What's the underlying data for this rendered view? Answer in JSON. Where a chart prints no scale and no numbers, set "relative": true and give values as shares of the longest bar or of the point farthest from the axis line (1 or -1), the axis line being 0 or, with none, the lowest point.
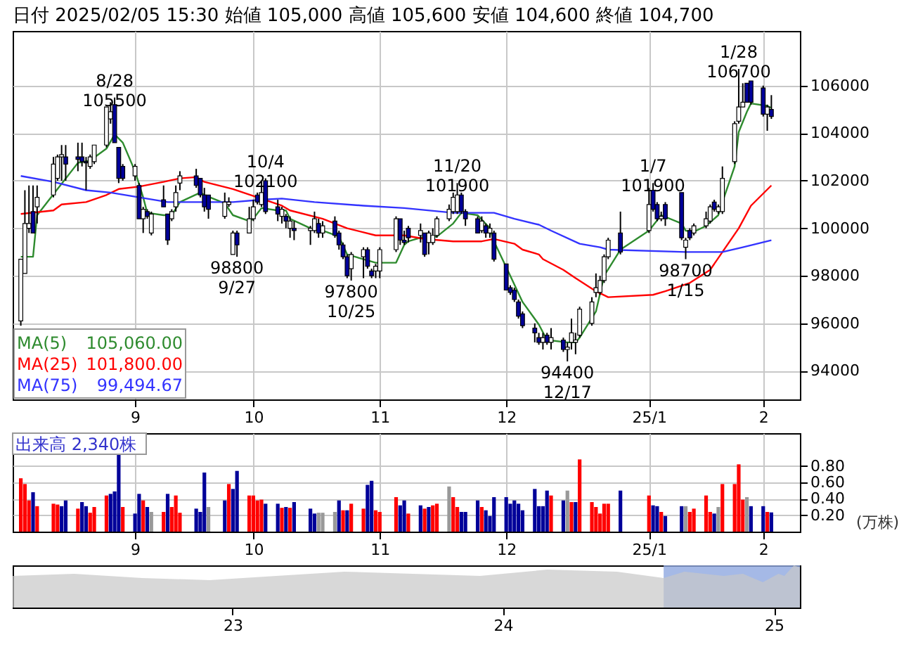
{
  "chart_data": [
    {
      "type": "candlestick",
      "title": "日付 2025/02/05 15:30 始値 105,000 高値 105,600 安値 104,600 終値 104,700",
      "x": [
        "2024-08-05",
        "2024-08-06",
        "2024-08-07",
        "2024-08-08",
        "2024-08-09",
        "2024-08-13",
        "2024-08-14",
        "2024-08-15",
        "2024-08-16",
        "2024-08-19",
        "2024-08-20",
        "2024-08-21",
        "2024-08-22",
        "2024-08-23",
        "2024-08-26",
        "2024-08-27",
        "2024-08-28",
        "2024-08-29",
        "2024-08-30",
        "2024-09-02",
        "2024-09-03",
        "2024-09-04",
        "2024-09-05",
        "2024-09-06",
        "2024-09-09",
        "2024-09-10",
        "2024-09-11",
        "2024-09-12",
        "2024-09-13",
        "2024-09-17",
        "2024-09-18",
        "2024-09-19",
        "2024-09-20",
        "2024-09-24",
        "2024-09-25",
        "2024-09-26",
        "2024-09-27",
        "2024-09-30",
        "2024-10-01",
        "2024-10-02",
        "2024-10-03",
        "2024-10-04",
        "2024-10-07",
        "2024-10-08",
        "2024-10-09",
        "2024-10-10",
        "2024-10-11",
        "2024-10-15",
        "2024-10-16",
        "2024-10-17",
        "2024-10-18",
        "2024-10-21",
        "2024-10-22",
        "2024-10-23",
        "2024-10-24",
        "2024-10-25",
        "2024-10-28",
        "2024-10-29",
        "2024-10-30",
        "2024-10-31",
        "2024-11-01",
        "2024-11-05",
        "2024-11-06",
        "2024-11-07",
        "2024-11-08",
        "2024-11-11",
        "2024-11-12",
        "2024-11-13",
        "2024-11-14",
        "2024-11-15",
        "2024-11-18",
        "2024-11-19",
        "2024-11-20",
        "2024-11-21",
        "2024-11-22",
        "2024-11-25",
        "2024-11-26",
        "2024-11-27",
        "2024-11-28",
        "2024-11-29",
        "2024-12-02",
        "2024-12-03",
        "2024-12-04",
        "2024-12-05",
        "2024-12-06",
        "2024-12-09",
        "2024-12-10",
        "2024-12-11",
        "2024-12-12",
        "2024-12-13",
        "2024-12-16",
        "2024-12-17",
        "2024-12-18",
        "2024-12-19",
        "2024-12-20",
        "2024-12-23",
        "2024-12-24",
        "2024-12-25",
        "2024-12-26",
        "2024-12-27",
        "2024-12-30",
        "2025-01-06",
        "2025-01-07",
        "2025-01-08",
        "2025-01-09",
        "2025-01-10",
        "2025-01-14",
        "2025-01-15",
        "2025-01-16",
        "2025-01-17",
        "2025-01-20",
        "2025-01-21",
        "2025-01-22",
        "2025-01-23",
        "2025-01-24",
        "2025-01-27",
        "2025-01-28",
        "2025-01-29",
        "2025-01-30",
        "2025-01-31",
        "2025-02-03",
        "2025-02-04",
        "2025-02-05"
      ],
      "ohlc": [
        [
          96100,
          98700,
          95900,
          98700
        ],
        [
          98100,
          101600,
          98100,
          100200
        ],
        [
          100000,
          101800,
          99800,
          100200
        ],
        [
          100700,
          101800,
          99800,
          99800
        ],
        [
          100900,
          101800,
          100200,
          101300
        ],
        [
          101400,
          103000,
          101300,
          102700
        ],
        [
          102100,
          103100,
          102000,
          103000
        ],
        [
          103000,
          103500,
          102000,
          103100
        ],
        [
          103000,
          103500,
          102000,
          102700
        ],
        [
          103000,
          103600,
          102400,
          102900
        ],
        [
          103000,
          103600,
          102600,
          102800
        ],
        [
          102800,
          103000,
          101600,
          102750
        ],
        [
          102600,
          103100,
          102500,
          103000
        ],
        [
          102800,
          103500,
          102700,
          103500
        ],
        [
          103500,
          105100,
          103400,
          105100
        ],
        [
          104600,
          105300,
          104400,
          104900
        ],
        [
          105200,
          105500,
          103600,
          103600
        ],
        [
          103400,
          103400,
          101900,
          102100
        ],
        [
          102600,
          102700,
          102000,
          102100
        ],
        [
          102200,
          102700,
          102000,
          102600
        ],
        [
          101800,
          101900,
          100400,
          100400
        ],
        [
          100400,
          100900,
          99800,
          100800
        ],
        [
          100700,
          100800,
          100400,
          100500
        ],
        [
          99800,
          100700,
          99700,
          100600
        ],
        [
          101200,
          101800,
          100900,
          100900
        ],
        [
          100600,
          100600,
          99300,
          99500
        ],
        [
          100400,
          100800,
          100300,
          100700
        ],
        [
          100900,
          101800,
          100700,
          101500
        ],
        [
          101900,
          102400,
          101600,
          102200
        ],
        [
          102200,
          102500,
          101700,
          101800
        ],
        [
          102100,
          102100,
          101300,
          101400
        ],
        [
          101400,
          101700,
          100700,
          100900
        ],
        [
          101400,
          101400,
          100400,
          100800
        ],
        [
          100500,
          101500,
          100400,
          101100
        ],
        [
          101000,
          101300,
          100900,
          101100
        ],
        [
          98900,
          99900,
          98900,
          99800
        ],
        [
          99800,
          99900,
          98800,
          99300
        ],
        [
          99800,
          100900,
          99800,
          100400
        ],
        [
          100400,
          101200,
          100300,
          100900
        ],
        [
          101400,
          101500,
          101000,
          101100
        ],
        [
          101000,
          102000,
          100900,
          101500
        ],
        [
          102000,
          102100,
          100600,
          100700
        ],
        [
          100900,
          101200,
          100300,
          100600
        ],
        [
          100500,
          100900,
          100200,
          100800
        ],
        [
          100500,
          100600,
          100000,
          100300
        ],
        [
          100000,
          100500,
          99600,
          100300
        ],
        [
          100000,
          100300,
          99500,
          99900
        ],
        [
          99900,
          100100,
          99300,
          100000
        ],
        [
          99900,
          100700,
          99800,
          100400
        ],
        [
          100200,
          100400,
          99600,
          99800
        ],
        [
          99800,
          100300,
          99600,
          100100
        ],
        [
          100300,
          100500,
          99600,
          99700
        ],
        [
          99800,
          99900,
          99100,
          99300
        ],
        [
          99300,
          99400,
          98700,
          98800
        ],
        [
          98800,
          98900,
          97900,
          98000
        ],
        [
          98300,
          99000,
          97800,
          98900
        ],
        [
          98800,
          99200,
          97900,
          99100
        ],
        [
          99100,
          99200,
          98300,
          98400
        ],
        [
          98200,
          98300,
          97900,
          98000
        ],
        [
          98200,
          98500,
          97900,
          98400
        ],
        [
          98200,
          99200,
          97900,
          99100
        ],
        [
          99100,
          100500,
          99000,
          100400
        ],
        [
          100400,
          100400,
          99300,
          99500
        ],
        [
          99500,
          99900,
          99300,
          99400
        ],
        [
          100000,
          100100,
          99400,
          99600
        ],
        [
          99700,
          100200,
          99400,
          99900
        ],
        [
          99800,
          99800,
          98800,
          98900
        ],
        [
          99400,
          99900,
          98900,
          99800
        ],
        [
          99400,
          100000,
          99300,
          99700
        ],
        [
          99700,
          100500,
          99600,
          100400
        ],
        [
          100400,
          101000,
          100300,
          100800
        ],
        [
          100700,
          101500,
          100600,
          101300
        ],
        [
          100700,
          101900,
          100600,
          101400
        ],
        [
          101400,
          101500,
          100600,
          100700
        ],
        [
          100700,
          100800,
          100100,
          100400
        ],
        [
          100400,
          100500,
          99800,
          99800
        ],
        [
          99900,
          100500,
          99800,
          100300
        ],
        [
          100100,
          100200,
          99600,
          99800
        ],
        [
          99800,
          100200,
          99600,
          100000
        ],
        [
          99800,
          99900,
          98600,
          98700
        ],
        [
          98500,
          98500,
          97400,
          97400
        ],
        [
          97500,
          97600,
          97200,
          97300
        ],
        [
          97400,
          97500,
          96900,
          97000
        ],
        [
          96900,
          97000,
          96200,
          96300
        ],
        [
          96400,
          96500,
          95800,
          95900
        ],
        [
          95800,
          96000,
          95200,
          95600
        ],
        [
          95400,
          95600,
          95100,
          95200
        ],
        [
          95200,
          95600,
          94900,
          95400
        ],
        [
          95500,
          95600,
          95100,
          95200
        ],
        [
          95200,
          95800,
          94900,
          95400
        ],
        [
          95300,
          95400,
          94800,
          94900
        ],
        [
          94900,
          95200,
          94400,
          95000
        ],
        [
          95200,
          96200,
          94900,
          95600
        ],
        [
          95200,
          95600,
          94700,
          95300
        ],
        [
          95500,
          96700,
          95400,
          96600
        ],
        [
          96000,
          97100,
          95900,
          96900
        ],
        [
          97300,
          98100,
          97100,
          97500
        ],
        [
          97300,
          98000,
          97200,
          97800
        ],
        [
          97800,
          98900,
          97700,
          98800
        ],
        [
          98800,
          99600,
          98700,
          99500
        ],
        [
          99800,
          100700,
          98900,
          99000
        ],
        [
          99900,
          101700,
          99800,
          101000
        ],
        [
          101600,
          101900,
          100700,
          100800
        ],
        [
          101000,
          101100,
          100300,
          100400
        ],
        [
          100400,
          100700,
          100300,
          100500
        ],
        [
          101000,
          101100,
          100100,
          100400
        ],
        [
          101500,
          101500,
          99500,
          99600
        ],
        [
          99200,
          99600,
          98700,
          99500
        ],
        [
          99900,
          100000,
          99500,
          99600
        ],
        [
          99800,
          100200,
          99700,
          100100
        ],
        [
          100100,
          100700,
          100000,
          100400
        ],
        [
          100300,
          101000,
          100200,
          100900
        ],
        [
          101100,
          101200,
          100700,
          100800
        ],
        [
          100700,
          101000,
          100600,
          100900
        ],
        [
          100700,
          102600,
          100600,
          102100
        ],
        [
          102800,
          104500,
          102700,
          104400
        ],
        [
          104500,
          106700,
          104400,
          105100
        ],
        [
          105100,
          106100,
          105100,
          105300
        ],
        [
          106100,
          106100,
          105300,
          105300
        ],
        [
          106200,
          106200,
          105200,
          105300
        ],
        [
          105900,
          106000,
          104700,
          104800
        ],
        [
          104800,
          105200,
          104100,
          105100
        ],
        [
          105000,
          105600,
          104600,
          104700
        ]
      ],
      "colors": [
        "#ffffff",
        "#ffffff",
        "#ffffff",
        "#000099",
        "#ffffff",
        "#ffffff",
        "#ffffff",
        "#ffffff",
        "#000099",
        "#000099",
        "#000099",
        "#000099",
        "#ffffff",
        "#ffffff",
        "#ffffff",
        "#ffffff",
        "#000099",
        "#000099",
        "#000099",
        "#ffffff",
        "#000099",
        "#ffffff",
        "#000099",
        "#ffffff",
        "#000099",
        "#000099",
        "#ffffff",
        "#ffffff",
        "#ffffff",
        "#000099",
        "#000099",
        "#000099",
        "#000099",
        "#ffffff",
        "#ffffff",
        "#ffffff",
        "#000099",
        "#ffffff",
        "#ffffff",
        "#000099",
        "#ffffff",
        "#000099",
        "#000099",
        "#ffffff",
        "#000099",
        "#ffffff",
        "#000099",
        "#ffffff",
        "#ffffff",
        "#000099",
        "#ffffff",
        "#000099",
        "#000099",
        "#000099",
        "#000099",
        "#ffffff",
        "#ffffff",
        "#000099",
        "#000099",
        "#ffffff",
        "#ffffff",
        "#ffffff",
        "#000099",
        "#000099",
        "#000099",
        "#ffffff",
        "#000099",
        "#ffffff",
        "#ffffff",
        "#ffffff",
        "#ffffff",
        "#ffffff",
        "#ffffff",
        "#000099",
        "#000099",
        "#000099",
        "#ffffff",
        "#000099",
        "#ffffff",
        "#000099",
        "#000099",
        "#000099",
        "#000099",
        "#000099",
        "#000099",
        "#000099",
        "#000099",
        "#ffffff",
        "#000099",
        "#ffffff",
        "#000099",
        "#ffffff",
        "#ffffff",
        "#ffffff",
        "#ffffff",
        "#ffffff",
        "#ffffff",
        "#ffffff",
        "#ffffff",
        "#ffffff",
        "#000099",
        "#ffffff",
        "#000099",
        "#000099",
        "#ffffff",
        "#000099",
        "#000099",
        "#ffffff",
        "#000099",
        "#ffffff",
        "#ffffff",
        "#ffffff",
        "#000099",
        "#ffffff",
        "#ffffff",
        "#ffffff",
        "#ffffff",
        "#ffffff",
        "#000099",
        "#000099",
        "#000099",
        "#ffffff",
        "#000099"
      ],
      "series": [
        {
          "type": "line",
          "name": "MA(5)",
          "color": "#2e8b2e",
          "x": [
            "2024-08-05",
            "2024-08-08",
            "2024-08-09",
            "2024-08-14",
            "2024-08-19",
            "2024-08-22",
            "2024-08-26",
            "2024-08-28",
            "2024-08-30",
            "2024-09-02",
            "2024-09-04",
            "2024-09-05",
            "2024-09-09",
            "2024-09-11",
            "2024-09-13",
            "2024-09-18",
            "2024-09-19",
            "2024-09-24",
            "2024-09-26",
            "2024-09-30",
            "2024-10-01",
            "2024-10-03",
            "2024-10-07",
            "2024-10-09",
            "2024-10-10",
            "2024-10-15",
            "2024-10-18",
            "2024-10-22",
            "2024-10-24",
            "2024-10-28",
            "2024-10-31",
            "2024-11-05",
            "2024-11-07",
            "2024-11-08",
            "2024-11-12",
            "2024-11-15",
            "2024-11-19",
            "2024-11-21",
            "2024-11-25",
            "2024-11-28",
            "2024-11-29",
            "2024-12-03",
            "2024-12-06",
            "2024-12-10",
            "2024-12-12",
            "2024-12-17",
            "2024-12-19",
            "2024-12-20",
            "2024-12-24",
            "2024-12-26",
            "2024-12-30",
            "2025-01-06",
            "2025-01-09",
            "2025-01-14",
            "2025-01-15",
            "2025-01-17",
            "2025-01-20",
            "2025-01-23",
            "2025-01-24",
            "2025-01-27",
            "2025-01-28",
            "2025-01-30",
            "2025-01-31",
            "2025-02-04",
            "2025-02-05"
          ],
          "values": [
            98800,
            98800,
            100550,
            101650,
            102750,
            102850,
            103350,
            103950,
            103600,
            102400,
            101300,
            100650,
            100550,
            100550,
            101100,
            101500,
            101400,
            101050,
            100550,
            100300,
            100400,
            100850,
            100750,
            100750,
            100400,
            100000,
            99900,
            99650,
            98900,
            98700,
            98550,
            98550,
            99300,
            99450,
            99650,
            99650,
            100200,
            100650,
            100550,
            100000,
            99450,
            98000,
            96900,
            95950,
            95300,
            95200,
            95200,
            95400,
            96500,
            98000,
            99100,
            99900,
            100550,
            100200,
            99900,
            99850,
            100100,
            100550,
            101100,
            102600,
            104050,
            104900,
            105250,
            105150,
            105060
          ]
        },
        {
          "type": "line",
          "name": "MA(25)",
          "color": "#ff0000",
          "x": [
            "2024-08-05",
            "2024-08-13",
            "2024-08-15",
            "2024-08-21",
            "2024-08-26",
            "2024-08-29",
            "2024-09-03",
            "2024-09-09",
            "2024-09-13",
            "2024-09-17",
            "2024-09-19",
            "2024-09-26",
            "2024-10-02",
            "2024-10-08",
            "2024-10-10",
            "2024-10-18",
            "2024-10-24",
            "2024-10-31",
            "2024-11-07",
            "2024-11-12",
            "2024-11-19",
            "2024-11-26",
            "2024-11-29",
            "2024-12-04",
            "2024-12-06",
            "2024-12-10",
            "2024-12-11",
            "2024-12-16",
            "2024-12-19",
            "2024-12-24",
            "2024-12-27",
            "2025-01-07",
            "2025-01-10",
            "2025-01-16",
            "2025-01-21",
            "2025-01-24",
            "2025-01-28",
            "2025-01-31",
            "2025-02-05"
          ],
          "values": [
            100600,
            100750,
            101000,
            101100,
            101400,
            101650,
            101750,
            101950,
            102100,
            102150,
            101950,
            101650,
            101300,
            100950,
            100750,
            100400,
            100000,
            99700,
            99700,
            99550,
            99450,
            99450,
            99550,
            99350,
            99100,
            98900,
            98700,
            98250,
            97900,
            97350,
            97100,
            97200,
            97350,
            97700,
            98250,
            99000,
            100000,
            100950,
            101800
          ]
        },
        {
          "type": "line",
          "name": "MA(75)",
          "color": "#3333ff",
          "x": [
            "2024-08-05",
            "2024-08-13",
            "2024-08-21",
            "2024-08-27",
            "2024-09-03",
            "2024-09-10",
            "2024-09-17",
            "2024-09-26",
            "2024-10-03",
            "2024-10-08",
            "2024-10-16",
            "2024-10-28",
            "2024-11-07",
            "2024-11-19",
            "2024-11-29",
            "2024-12-04",
            "2024-12-10",
            "2024-12-13",
            "2024-12-20",
            "2024-12-25",
            "2024-12-27",
            "2025-01-15",
            "2025-01-24",
            "2025-01-29",
            "2025-02-05"
          ],
          "values": [
            102200,
            101950,
            101600,
            101500,
            101300,
            101100,
            101100,
            101100,
            101200,
            101250,
            101100,
            100950,
            100850,
            100650,
            100650,
            100400,
            100150,
            99900,
            99350,
            99200,
            99100,
            99000,
            99000,
            99200,
            99494.67
          ]
        }
      ],
      "annotations": [
        {
          "text": "8/28\n105500",
          "x": "2024-08-28",
          "y": 105500
        },
        {
          "text": "98800\n9/27",
          "x": "2024-09-27",
          "y": 98800
        },
        {
          "text": "10/4\n102100",
          "x": "2024-10-04",
          "y": 102100
        },
        {
          "text": "97800\n10/25",
          "x": "2024-10-25",
          "y": 97800
        },
        {
          "text": "11/20\n101900",
          "x": "2024-11-20",
          "y": 101900
        },
        {
          "text": "94400\n12/17",
          "x": "2024-12-17",
          "y": 94400
        },
        {
          "text": "1/7\n101900",
          "x": "2025-01-07",
          "y": 101900
        },
        {
          "text": "98700\n1/15",
          "x": "2025-01-15",
          "y": 98700
        },
        {
          "text": "1/28\n106700",
          "x": "2025-01-28",
          "y": 106700
        },
        "105,060.00",
        "101,800.00",
        "99,494.67"
      ],
      "ylim": [
        92800,
        108300
      ],
      "yticks": [
        94000,
        96000,
        98000,
        100000,
        102000,
        104000,
        106000
      ],
      "xticks": [
        {
          "value": "2024-09-02",
          "label": "9"
        },
        {
          "value": "2024-10-01",
          "label": "10"
        },
        {
          "value": "2024-11-01",
          "label": "11"
        },
        {
          "value": "2024-12-02",
          "label": "12"
        },
        {
          "value": "2025-01-06",
          "label": "25/1"
        },
        {
          "value": "2025-02-03",
          "label": "2"
        }
      ],
      "xlim": [
        "2024-08-03",
        "2025-02-12"
      ],
      "grid": true,
      "legend": "bottom left"
    },
    {
      "type": "bar",
      "x": [
        "2024-08-05",
        "2024-08-06",
        "2024-08-07",
        "2024-08-08",
        "2024-08-09",
        "2024-08-13",
        "2024-08-14",
        "2024-08-15",
        "2024-08-16",
        "2024-08-19",
        "2024-08-20",
        "2024-08-21",
        "2024-08-22",
        "2024-08-23",
        "2024-08-26",
        "2024-08-27",
        "2024-08-28",
        "2024-08-29",
        "2024-08-30",
        "2024-09-02",
        "2024-09-03",
        "2024-09-04",
        "2024-09-05",
        "2024-09-06",
        "2024-09-09",
        "2024-09-10",
        "2024-09-11",
        "2024-09-12",
        "2024-09-13",
        "2024-09-17",
        "2024-09-18",
        "2024-09-19",
        "2024-09-20",
        "2024-09-24",
        "2024-09-25",
        "2024-09-26",
        "2024-09-27",
        "2024-09-30",
        "2024-10-01",
        "2024-10-02",
        "2024-10-03",
        "2024-10-04",
        "2024-10-07",
        "2024-10-08",
        "2024-10-09",
        "2024-10-10",
        "2024-10-11",
        "2024-10-15",
        "2024-10-16",
        "2024-10-17",
        "2024-10-18",
        "2024-10-21",
        "2024-10-22",
        "2024-10-23",
        "2024-10-24",
        "2024-10-25",
        "2024-10-28",
        "2024-10-29",
        "2024-10-30",
        "2024-10-31",
        "2024-11-01",
        "2024-11-05",
        "2024-11-06",
        "2024-11-07",
        "2024-11-08",
        "2024-11-11",
        "2024-11-12",
        "2024-11-13",
        "2024-11-14",
        "2024-11-15",
        "2024-11-18",
        "2024-11-19",
        "2024-11-20",
        "2024-11-21",
        "2024-11-22",
        "2024-11-25",
        "2024-11-26",
        "2024-11-27",
        "2024-11-28",
        "2024-11-29",
        "2024-12-02",
        "2024-12-03",
        "2024-12-04",
        "2024-12-05",
        "2024-12-06",
        "2024-12-09",
        "2024-12-10",
        "2024-12-11",
        "2024-12-12",
        "2024-12-13",
        "2024-12-16",
        "2024-12-17",
        "2024-12-18",
        "2024-12-19",
        "2024-12-20",
        "2024-12-23",
        "2024-12-24",
        "2024-12-25",
        "2024-12-26",
        "2024-12-27",
        "2024-12-30",
        "2025-01-06",
        "2025-01-07",
        "2025-01-08",
        "2025-01-09",
        "2025-01-10",
        "2025-01-14",
        "2025-01-15",
        "2025-01-16",
        "2025-01-17",
        "2025-01-20",
        "2025-01-21",
        "2025-01-22",
        "2025-01-23",
        "2025-01-24",
        "2025-01-27",
        "2025-01-28",
        "2025-01-29",
        "2025-01-30",
        "2025-01-31",
        "2025-02-03",
        "2025-02-04",
        "2025-02-05"
      ],
      "values": [
        0.65,
        0.58,
        0.38,
        0.48,
        0.31,
        0.34,
        0.33,
        0.31,
        0.38,
        0.28,
        0.36,
        0.31,
        0.23,
        0.3,
        0.44,
        0.46,
        0.49,
        0.94,
        0.3,
        0.22,
        0.46,
        0.38,
        0.3,
        0.24,
        0.24,
        0.46,
        0.3,
        0.44,
        0.23,
        0.28,
        0.24,
        0.72,
        0.3,
        0.38,
        0.58,
        0.52,
        0.74,
        0.44,
        0.44,
        0.38,
        0.39,
        0.34,
        0.34,
        0.29,
        0.3,
        0.29,
        0.36,
        0.28,
        0.22,
        0.23,
        0.23,
        0.24,
        0.38,
        0.26,
        0.26,
        0.34,
        0.28,
        0.57,
        0.62,
        0.26,
        0.24,
        0.42,
        0.32,
        0.38,
        0.22,
        0.32,
        0.28,
        0.3,
        0.32,
        0.34,
        0.55,
        0.42,
        0.3,
        0.24,
        0.24,
        0.38,
        0.3,
        0.26,
        0.19,
        0.42,
        0.42,
        0.34,
        0.38,
        0.34,
        0.26,
        0.52,
        0.31,
        0.31,
        0.5,
        0.44,
        0.38,
        0.5,
        0.36,
        0.36,
        0.88,
        0.36,
        0.3,
        0.22,
        0.34,
        0.34,
        0.5,
        0.44,
        0.32,
        0.31,
        0.24,
        0.19,
        0.31,
        0.31,
        0.24,
        0.28,
        0.44,
        0.24,
        0.22,
        0.3,
        0.58,
        0.58,
        0.82,
        0.39,
        0.42,
        0.31,
        0.31,
        0.24,
        0.234
      ],
      "colors": [
        "#ff0000",
        "#ff0000",
        "#ff0000",
        "#000099",
        "#ff0000",
        "#ff0000",
        "#ff0000",
        "#000099",
        "#000099",
        "#ff0000",
        "#000099",
        "#000099",
        "#ff0000",
        "#ff0000",
        "#ff0000",
        "#000099",
        "#000099",
        "#000099",
        "#ff0000",
        "#000099",
        "#000099",
        "#ff0000",
        "#000099",
        "#999999",
        "#ff0000",
        "#000099",
        "#ff0000",
        "#ff0000",
        "#ff0000",
        "#000099",
        "#000099",
        "#000099",
        "#999999",
        "#000099",
        "#ff0000",
        "#000099",
        "#000099",
        "#ff0000",
        "#ff0000",
        "#ff0000",
        "#ff0000",
        "#000099",
        "#000099",
        "#ff0000",
        "#000099",
        "#ff0000",
        "#000099",
        "#000099",
        "#000099",
        "#999999",
        "#999999",
        "#999999",
        "#000099",
        "#ff0000",
        "#000099",
        "#ff0000",
        "#ff0000",
        "#000099",
        "#000099",
        "#ff0000",
        "#ff0000",
        "#ff0000",
        "#000099",
        "#000099",
        "#ff0000",
        "#000099",
        "#ff0000",
        "#000099",
        "#ff0000",
        "#ff0000",
        "#999999",
        "#ff0000",
        "#ff0000",
        "#000099",
        "#000099",
        "#000099",
        "#ff0000",
        "#000099",
        "#000099",
        "#000099",
        "#000099",
        "#000099",
        "#000099",
        "#000099",
        "#000099",
        "#000099",
        "#000099",
        "#000099",
        "#000099",
        "#ff0000",
        "#000099",
        "#999999",
        "#ff0000",
        "#000099",
        "#ff0000",
        "#ff0000",
        "#ff0000",
        "#ff0000",
        "#ff0000",
        "#ff0000",
        "#000099",
        "#ff0000",
        "#000099",
        "#000099",
        "#ff0000",
        "#000099",
        "#000099",
        "#999999",
        "#ff0000",
        "#ff0000",
        "#ff0000",
        "#ff0000",
        "#000099",
        "#999999",
        "#ff0000",
        "#ff0000",
        "#ff0000",
        "#ff0000",
        "#999999",
        "#000099",
        "#000099",
        "#ff0000",
        "#000099"
      ],
      "ylim": [
        0,
        1.2
      ],
      "yticks": [
        {
          "value": 0.2,
          "label": "0.20"
        },
        {
          "value": 0.4,
          "label": "0.40"
        },
        {
          "value": 0.6,
          "label": "0.60"
        },
        {
          "value": 0.8,
          "label": "0.80"
        }
      ],
      "xticks": [
        {
          "value": "2024-09-02",
          "label": "9"
        },
        {
          "value": "2024-10-01",
          "label": "10"
        },
        {
          "value": "2024-11-01",
          "label": "11"
        },
        {
          "value": "2024-12-02",
          "label": "12"
        },
        {
          "value": "2025-01-06",
          "label": "25/1"
        },
        {
          "value": "2025-02-03",
          "label": "2"
        }
      ],
      "xlim": [
        "2024-08-03",
        "2025-02-12"
      ],
      "ylabel": "(万株)",
      "annotations": [
        "出来高  2,340株"
      ],
      "grid": true
    },
    {
      "type": "area",
      "relative": true,
      "series": [
        {
          "color": "#c8c8c8",
          "x": [
            "2022-03-10",
            "2022-06-01",
            "2022-09-01",
            "2022-12-01",
            "2023-03-01",
            "2023-06-01",
            "2023-09-01",
            "2023-12-01",
            "2024-03-01",
            "2024-06-03",
            "2024-08-05",
            "2024-09-02",
            "2024-10-25",
            "2024-11-20",
            "2024-12-17",
            "2025-01-07",
            "2025-01-15",
            "2025-01-28",
            "2025-02-05"
          ],
          "values": [
            0.75,
            0.8,
            0.7,
            0.65,
            0.75,
            0.85,
            0.8,
            0.75,
            0.9,
            0.85,
            0.7,
            0.85,
            0.75,
            0.8,
            0.6,
            0.8,
            0.75,
            1.0,
            0.95
          ]
        }
      ],
      "xlim": [
        "2022-03-10",
        "2025-02-05"
      ],
      "xticks": [
        {
          "value": "2023-01-01",
          "label": "23"
        },
        {
          "value": "2024-01-01",
          "label": "24"
        },
        {
          "value": "2025-01-01",
          "label": "25"
        }
      ],
      "bands": [
        {
          "axis": "x",
          "from": "2024-08-05",
          "to": "2025-02-05",
          "color": "#8fa8e0"
        }
      ]
    }
  ]
}
